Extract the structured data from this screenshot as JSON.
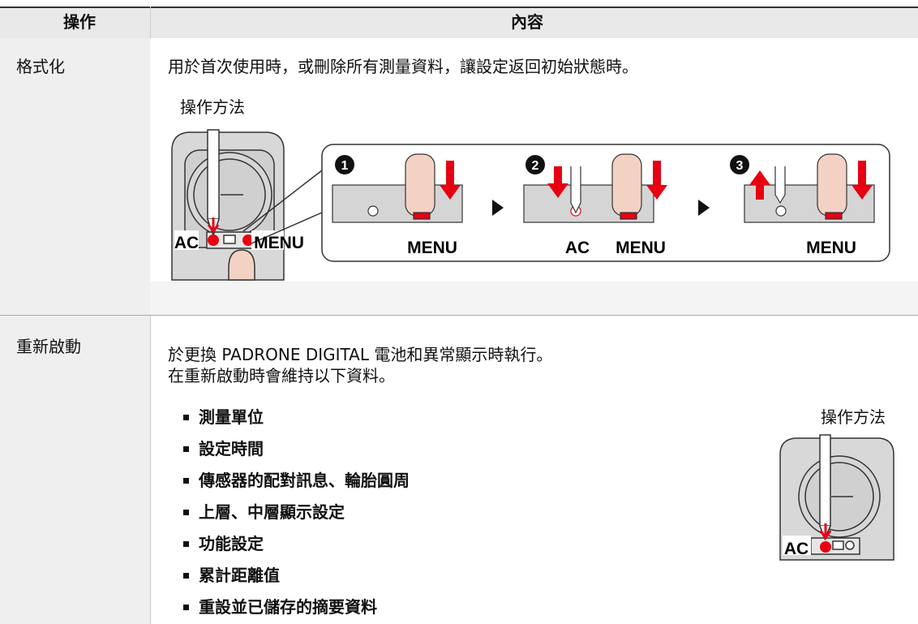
{
  "table": {
    "headers": [
      "操作",
      "內容"
    ],
    "rows": [
      {
        "name": "格式化",
        "description": "用於首次使用時，或刪除所有測量資料，讓設定返回初始狀態時。",
        "method_label": "操作方法",
        "figure": {
          "left_labels": [
            "AC",
            "MENU"
          ],
          "steps": [
            {
              "number": "1",
              "labels": [
                "MENU"
              ]
            },
            {
              "number": "2",
              "labels": [
                "AC",
                "MENU"
              ]
            },
            {
              "number": "3",
              "labels": [
                "MENU"
              ]
            }
          ]
        }
      },
      {
        "name": "重新啟動",
        "description": [
          "於更換 PADRONE DIGITAL 電池和異常顯示時執行。",
          "在重新啟動時會維持以下資料。"
        ],
        "items": [
          "測量單位",
          "設定時間",
          "傳感器的配對訊息、輪胎圓周",
          "上層、中層顯示設定",
          "功能設定",
          "累計距離值",
          "重設並已儲存的摘要資料"
        ],
        "method_label": "操作方法",
        "figure": {
          "labels": [
            "AC"
          ]
        }
      }
    ]
  }
}
